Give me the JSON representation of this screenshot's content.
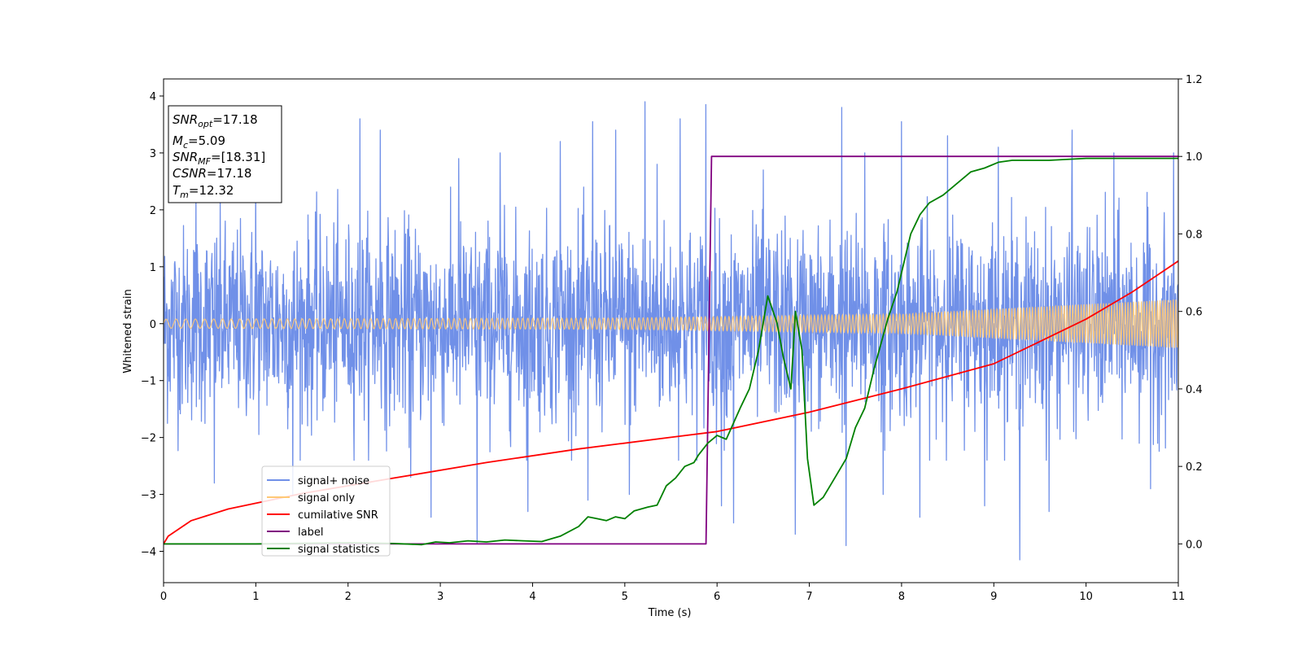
{
  "chart_data": {
    "type": "line",
    "title": "",
    "xlabel": "Time (s)",
    "ylabel": "Whitened strain",
    "xlim": [
      0,
      11
    ],
    "ylim": [
      -4.55,
      4.3
    ],
    "y2lim": [
      -0.1,
      1.2
    ],
    "x_ticks": [
      "0",
      "1",
      "2",
      "3",
      "4",
      "5",
      "6",
      "7",
      "8",
      "9",
      "10",
      "11"
    ],
    "y_ticks": [
      "−4",
      "−3",
      "−2",
      "−1",
      "0",
      "1",
      "2",
      "3",
      "4"
    ],
    "y2_ticks": [
      "0.0",
      "0.2",
      "0.4",
      "0.6",
      "0.8",
      "1.0",
      "1.2"
    ],
    "grid": false,
    "legend_position": "lower-left",
    "annotation": {
      "lines": [
        {
          "main": "SNR",
          "sub": "opt",
          "rest": "=17.18"
        },
        {
          "main": "M",
          "sub": "c",
          "rest": "=5.09"
        },
        {
          "main": "SNR",
          "sub": "MF",
          "rest": "=[18.31]"
        },
        {
          "main": "CSNR",
          "sub": "",
          "rest": "=17.18"
        },
        {
          "main": "T",
          "sub": "m",
          "rest": "=12.32"
        }
      ]
    },
    "series": [
      {
        "name": "signal+ noise",
        "axis": "left",
        "color": "#7090e8",
        "noise_std": 0.85,
        "spikes": [
          [
            0.35,
            2.3
          ],
          [
            0.55,
            -2.8
          ],
          [
            1.0,
            2.6
          ],
          [
            1.4,
            -3.0
          ],
          [
            2.13,
            3.6
          ],
          [
            2.35,
            3.4
          ],
          [
            2.68,
            -2.7
          ],
          [
            2.9,
            -3.4
          ],
          [
            3.2,
            2.9
          ],
          [
            3.4,
            -3.85
          ],
          [
            3.65,
            3.0
          ],
          [
            3.95,
            -3.3
          ],
          [
            4.3,
            3.2
          ],
          [
            4.6,
            -3.1
          ],
          [
            4.65,
            3.55
          ],
          [
            4.9,
            3.4
          ],
          [
            5.05,
            -3.0
          ],
          [
            5.22,
            3.9
          ],
          [
            5.35,
            2.8
          ],
          [
            5.6,
            3.6
          ],
          [
            5.88,
            3.85
          ],
          [
            6.05,
            -3.2
          ],
          [
            6.18,
            -3.5
          ],
          [
            6.5,
            2.7
          ],
          [
            6.85,
            -3.7
          ],
          [
            7.35,
            3.8
          ],
          [
            7.4,
            -3.9
          ],
          [
            7.6,
            3.0
          ],
          [
            7.8,
            -3.0
          ],
          [
            8.0,
            3.55
          ],
          [
            8.2,
            -3.4
          ],
          [
            8.5,
            3.3
          ],
          [
            8.9,
            -3.2
          ],
          [
            9.05,
            3.1
          ],
          [
            9.28,
            -4.15
          ],
          [
            9.6,
            -3.3
          ],
          [
            9.85,
            3.4
          ],
          [
            10.3,
            3.0
          ],
          [
            10.7,
            -2.9
          ],
          [
            10.95,
            3.0
          ]
        ]
      },
      {
        "name": "signal only",
        "axis": "left",
        "color": "#ffc875",
        "envelope": [
          [
            0,
            0.08
          ],
          [
            5,
            0.1
          ],
          [
            8,
            0.17
          ],
          [
            11,
            0.43
          ]
        ]
      },
      {
        "name": "cumilative SNR",
        "axis": "right",
        "color": "#ff0000",
        "points": [
          [
            0,
            0
          ],
          [
            0.05,
            0.02
          ],
          [
            0.3,
            0.06
          ],
          [
            0.7,
            0.09
          ],
          [
            1.5,
            0.13
          ],
          [
            2.5,
            0.17
          ],
          [
            3.5,
            0.21
          ],
          [
            4.5,
            0.245
          ],
          [
            5.5,
            0.275
          ],
          [
            6,
            0.29
          ],
          [
            7,
            0.34
          ],
          [
            8,
            0.4
          ],
          [
            9,
            0.465
          ],
          [
            10,
            0.58
          ],
          [
            10.5,
            0.65
          ],
          [
            11,
            0.73
          ]
        ]
      },
      {
        "name": "label",
        "axis": "right",
        "color": "#800080",
        "points": [
          [
            0,
            0
          ],
          [
            5.88,
            0
          ],
          [
            5.94,
            1
          ],
          [
            11,
            1
          ]
        ]
      },
      {
        "name": "signal statistics",
        "axis": "right",
        "color": "#008000",
        "points": [
          [
            0,
            0
          ],
          [
            1,
            0.0
          ],
          [
            2,
            0.003
          ],
          [
            2.5,
            0.001
          ],
          [
            2.8,
            -0.002
          ],
          [
            2.95,
            0.005
          ],
          [
            3.1,
            0.003
          ],
          [
            3.3,
            0.008
          ],
          [
            3.5,
            0.005
          ],
          [
            3.7,
            0.01
          ],
          [
            3.9,
            0.008
          ],
          [
            4.1,
            0.006
          ],
          [
            4.3,
            0.02
          ],
          [
            4.5,
            0.045
          ],
          [
            4.6,
            0.07
          ],
          [
            4.7,
            0.065
          ],
          [
            4.8,
            0.06
          ],
          [
            4.9,
            0.07
          ],
          [
            5.0,
            0.065
          ],
          [
            5.1,
            0.085
          ],
          [
            5.25,
            0.095
          ],
          [
            5.35,
            0.1
          ],
          [
            5.45,
            0.15
          ],
          [
            5.55,
            0.17
          ],
          [
            5.65,
            0.2
          ],
          [
            5.75,
            0.21
          ],
          [
            5.8,
            0.23
          ],
          [
            5.9,
            0.26
          ],
          [
            6.0,
            0.28
          ],
          [
            6.1,
            0.27
          ],
          [
            6.25,
            0.35
          ],
          [
            6.35,
            0.4
          ],
          [
            6.45,
            0.5
          ],
          [
            6.55,
            0.64
          ],
          [
            6.65,
            0.57
          ],
          [
            6.72,
            0.48
          ],
          [
            6.8,
            0.4
          ],
          [
            6.85,
            0.6
          ],
          [
            6.92,
            0.5
          ],
          [
            6.98,
            0.22
          ],
          [
            7.05,
            0.1
          ],
          [
            7.15,
            0.12
          ],
          [
            7.3,
            0.18
          ],
          [
            7.4,
            0.22
          ],
          [
            7.5,
            0.3
          ],
          [
            7.6,
            0.35
          ],
          [
            7.7,
            0.45
          ],
          [
            7.85,
            0.58
          ],
          [
            7.95,
            0.65
          ],
          [
            8.1,
            0.8
          ],
          [
            8.2,
            0.85
          ],
          [
            8.3,
            0.88
          ],
          [
            8.45,
            0.9
          ],
          [
            8.6,
            0.93
          ],
          [
            8.75,
            0.96
          ],
          [
            8.9,
            0.97
          ],
          [
            9.05,
            0.985
          ],
          [
            9.2,
            0.99
          ],
          [
            9.6,
            0.99
          ],
          [
            10,
            0.995
          ],
          [
            11,
            0.995
          ]
        ]
      }
    ]
  }
}
